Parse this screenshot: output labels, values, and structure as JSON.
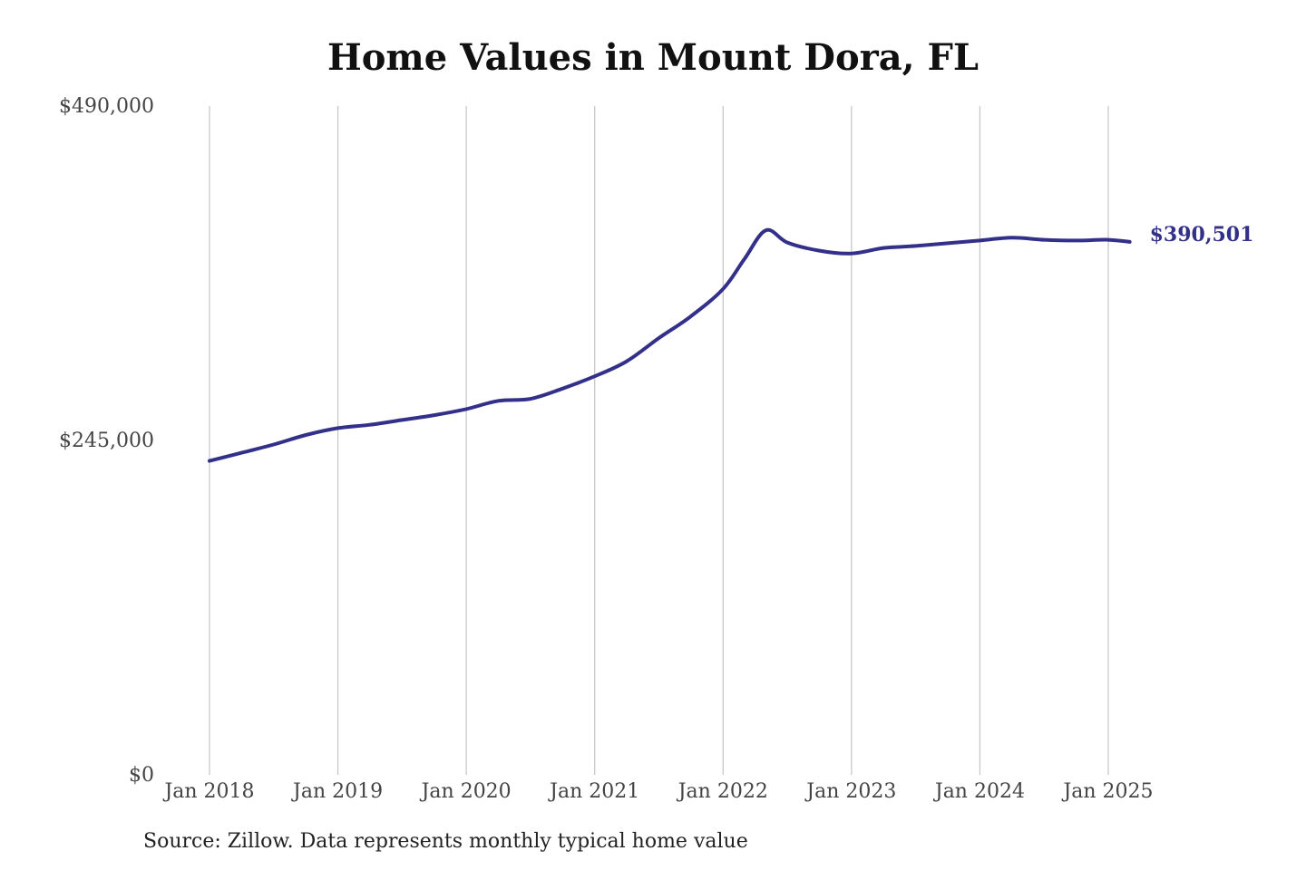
{
  "chart_data": {
    "type": "line",
    "title": "Home Values in Mount Dora, FL",
    "xlabel": "",
    "ylabel": "",
    "ylim": [
      0,
      490000
    ],
    "y_ticks": [
      {
        "value": 0,
        "label": "$0"
      },
      {
        "value": 245000,
        "label": "$245,000"
      },
      {
        "value": 490000,
        "label": "$490,000"
      }
    ],
    "x_ticks": [
      {
        "value": "2018-01",
        "label": "Jan 2018"
      },
      {
        "value": "2019-01",
        "label": "Jan 2019"
      },
      {
        "value": "2020-01",
        "label": "Jan 2020"
      },
      {
        "value": "2021-01",
        "label": "Jan 2021"
      },
      {
        "value": "2022-01",
        "label": "Jan 2022"
      },
      {
        "value": "2023-01",
        "label": "Jan 2023"
      },
      {
        "value": "2024-01",
        "label": "Jan 2024"
      },
      {
        "value": "2025-01",
        "label": "Jan 2025"
      }
    ],
    "grid": "vertical",
    "line_color": "#33308a",
    "series": [
      {
        "x": [
          "2018-01",
          "2018-04",
          "2018-07",
          "2018-10",
          "2019-01",
          "2019-04",
          "2019-07",
          "2019-10",
          "2020-01",
          "2020-04",
          "2020-07",
          "2020-10",
          "2021-01",
          "2021-04",
          "2021-07",
          "2021-10",
          "2022-01",
          "2022-03",
          "2022-05",
          "2022-07",
          "2022-10",
          "2023-01",
          "2023-04",
          "2023-07",
          "2023-10",
          "2024-01",
          "2024-04",
          "2024-07",
          "2024-10",
          "2025-01",
          "2025-03"
        ],
        "y": [
          230000,
          236000,
          242000,
          249000,
          254000,
          256500,
          260000,
          263500,
          268000,
          274000,
          275500,
          283000,
          292000,
          303000,
          320000,
          336000,
          356000,
          378000,
          399000,
          390000,
          384000,
          382000,
          386000,
          387500,
          389500,
          391500,
          393500,
          392000,
          391500,
          392000,
          390501
        ]
      }
    ],
    "end_label": "$390,501",
    "source": "Source: Zillow. Data represents monthly typical home value"
  }
}
